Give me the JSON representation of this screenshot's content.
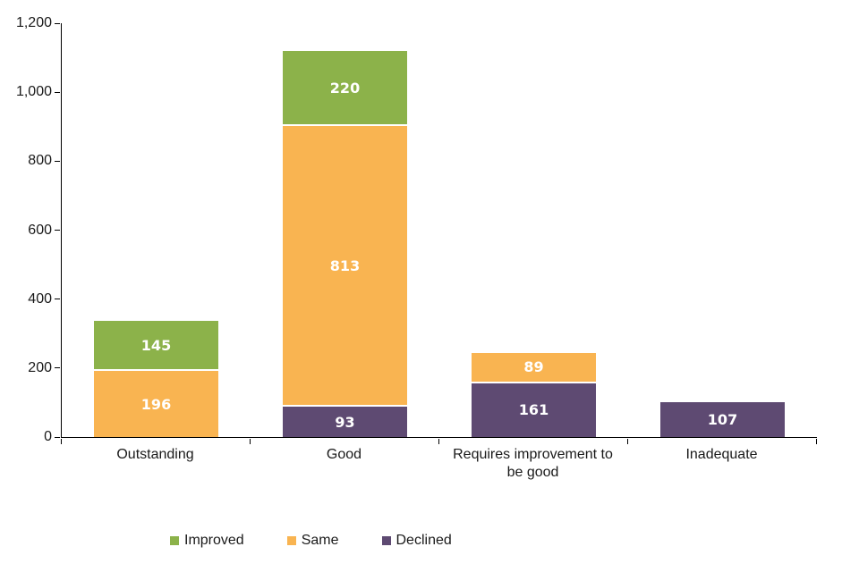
{
  "chart_data": {
    "type": "bar",
    "stacked": true,
    "title": "",
    "categories": [
      "Outstanding",
      "Good",
      "Requires improvement to be good",
      "Inadequate"
    ],
    "series": [
      {
        "name": "Declined",
        "color": "#5E4A72",
        "values": [
          0,
          93,
          161,
          107
        ]
      },
      {
        "name": "Same",
        "color": "#F9B451",
        "values": [
          196,
          813,
          89,
          0
        ]
      },
      {
        "name": "Improved",
        "color": "#8CB24A",
        "values": [
          145,
          220,
          0,
          0
        ]
      }
    ],
    "y_axis": {
      "min": 0,
      "max": 1200,
      "step": 200,
      "tick_labels": [
        "0",
        "200",
        "400",
        "600",
        "800",
        "1,000",
        "1,200"
      ]
    },
    "legend": {
      "position": "bottom",
      "order": [
        "Improved",
        "Same",
        "Declined"
      ]
    },
    "grid": false,
    "bar_label_color": "#ffffff",
    "axis_color": "#000000"
  }
}
